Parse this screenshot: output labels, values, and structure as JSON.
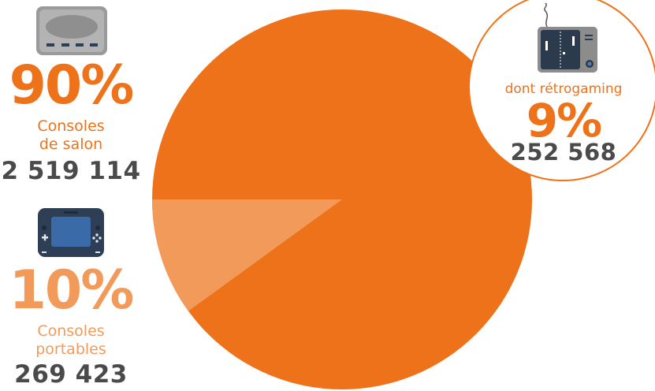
{
  "colors": {
    "primary": "#ed7219",
    "secondary": "#f29a5a",
    "text_dark": "#4a4a4a",
    "icon_gray": "#9a9a9a"
  },
  "segments": {
    "salon": {
      "percent": "90%",
      "label_line1": "Consoles",
      "label_line2": "de salon",
      "count": "2 519 114",
      "icon": "home-console-icon"
    },
    "portables": {
      "percent": "10%",
      "label_line1": "Consoles",
      "label_line2": "portables",
      "count": "269 423",
      "icon": "handheld-console-icon"
    },
    "retro": {
      "label": "dont rétrogaming",
      "percent": "9%",
      "count": "252 568",
      "icon": "retro-tv-pong-icon"
    }
  },
  "chart_data": {
    "type": "pie",
    "slices": [
      {
        "label": "Consoles de salon",
        "value": 90,
        "count": 2519114
      },
      {
        "label": "Consoles portables",
        "value": 10,
        "count": 269423
      }
    ],
    "sub_slice": {
      "label": "dont rétrogaming",
      "value": 9,
      "count": 252568,
      "parent": "Consoles de salon"
    }
  }
}
